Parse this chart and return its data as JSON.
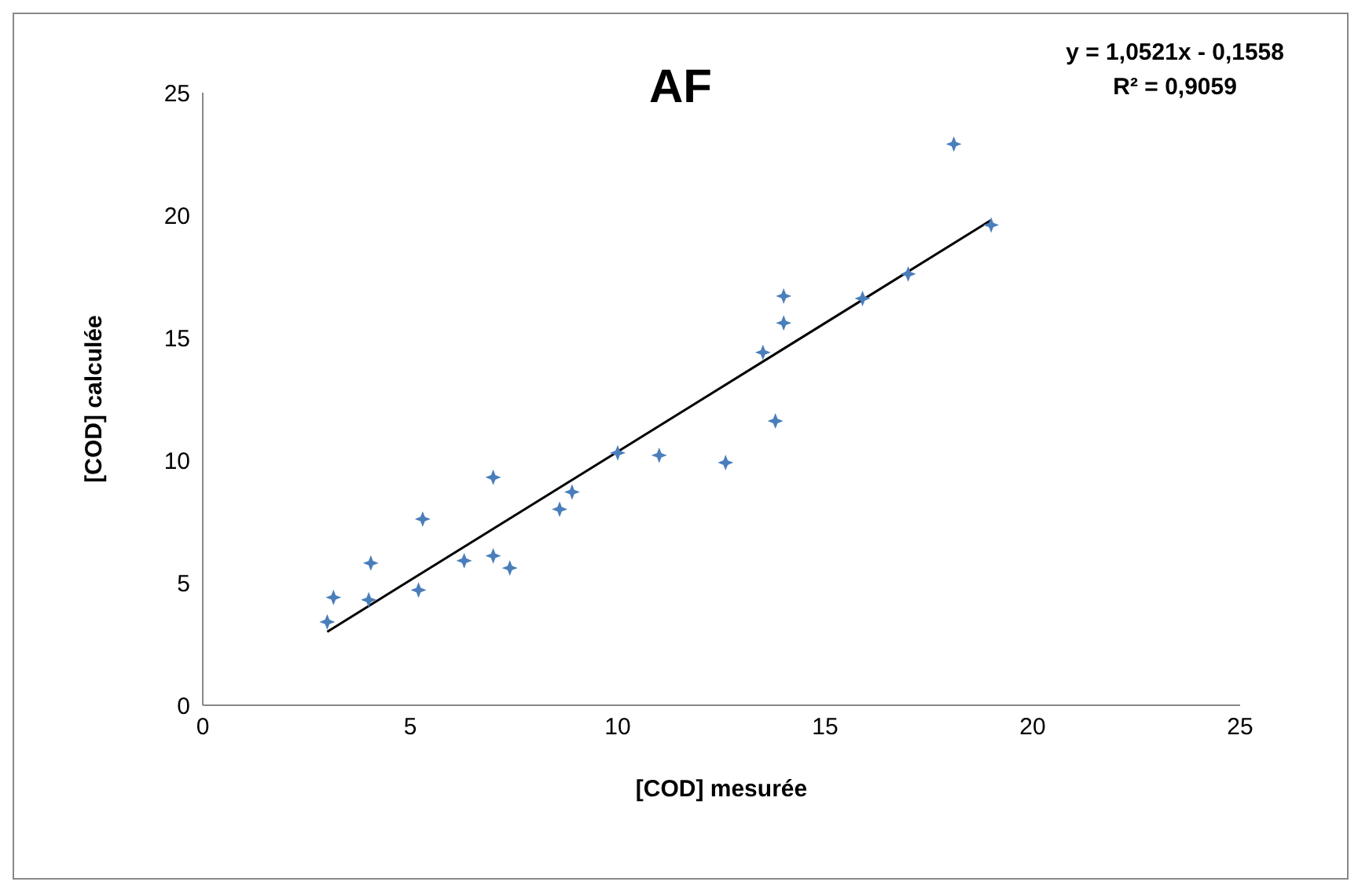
{
  "chart_data": {
    "type": "scatter",
    "title": "AF",
    "xlabel": "[COD] mesurée",
    "ylabel": "[COD] calculée",
    "annotations": [
      "y = 1,0521x - 0,1558",
      "R² = 0,9059"
    ],
    "xlim": [
      0,
      25
    ],
    "xticks": [
      0,
      5,
      10,
      15,
      20,
      25
    ],
    "ylim": [
      0,
      25
    ],
    "yticks": [
      0,
      5,
      10,
      15,
      20,
      25
    ],
    "grid": false,
    "legend": false,
    "marker": "star",
    "series": [
      {
        "type": "scatter",
        "color": "#4a7ebb",
        "x": [
          3.0,
          3.15,
          4.0,
          4.05,
          5.2,
          5.3,
          6.3,
          7.0,
          7.0,
          7.4,
          8.6,
          8.9,
          10.0,
          11.0,
          12.6,
          13.8,
          13.5,
          14.0,
          14.0,
          15.9,
          17.0,
          18.1,
          19.0
        ],
        "values": [
          3.4,
          4.4,
          4.3,
          5.8,
          4.7,
          7.6,
          5.9,
          9.3,
          6.1,
          5.6,
          8.0,
          8.7,
          10.3,
          10.2,
          9.9,
          11.6,
          14.4,
          15.6,
          16.7,
          16.6,
          17.6,
          22.9,
          19.6
        ]
      },
      {
        "type": "line",
        "color": "#000000",
        "x": [
          3,
          19
        ],
        "values": [
          3.0,
          19.8
        ],
        "marker": "none"
      }
    ]
  }
}
